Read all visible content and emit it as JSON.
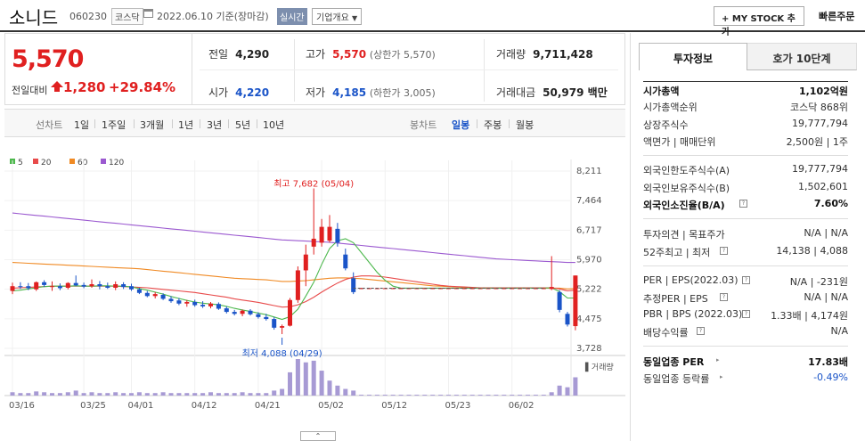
{
  "header": {
    "name": "소니드",
    "code": "060230",
    "market": "코스닥",
    "date": "2022.06.10 기준(장마감)",
    "realtime": "실시간",
    "company_info": "기업개요",
    "my_stock": "MY STOCK 추가",
    "quick_order": "빠른주문"
  },
  "price": {
    "current": "5,570",
    "change_label": "전일대비",
    "change": "1,280",
    "percent": "+29.84%"
  },
  "stats": {
    "prev_label": "전일",
    "prev": "4,290",
    "high_label": "고가",
    "high": "5,570",
    "high_note": "(상한가 5,570)",
    "volume_label": "거래량",
    "volume": "9,711,428",
    "open_label": "시가",
    "open": "4,220",
    "low_label": "저가",
    "low": "4,185",
    "low_note": "(하한가 3,005)",
    "amount_label": "거래대금",
    "amount": "50,979 백만"
  },
  "period_bar": {
    "line_label": "선차트",
    "line_periods": [
      "1일",
      "1주일",
      "3개월",
      "1년",
      "3년",
      "5년",
      "10년"
    ],
    "candle_label": "봉차트",
    "candle_periods": [
      "일봉",
      "주봉",
      "월봉"
    ],
    "active_candle": "일봉"
  },
  "chart_data": {
    "type": "candlestick",
    "legend": [
      {
        "name": "5",
        "color": "#4db84d"
      },
      {
        "name": "20",
        "color": "#e84a4a"
      },
      {
        "name": "60",
        "color": "#f08a24"
      },
      {
        "name": "120",
        "color": "#9b59d0"
      }
    ],
    "y_ticks": [
      "8,211",
      "7,464",
      "6,717",
      "5,970",
      "5,222",
      "4,475",
      "3,728"
    ],
    "ylim": [
      3728,
      8211
    ],
    "x_ticks": [
      "03/16",
      "03/25",
      "04/01",
      "04/12",
      "04/21",
      "05/02",
      "05/12",
      "05/23",
      "06/02"
    ],
    "high_annotation": "최고 7,682 (05/04)",
    "low_annotation": "최저 4,088 (04/29)",
    "volume_label": "거래량",
    "up_color": "#e02020",
    "down_color": "#1a54c8",
    "candles": [
      {
        "o": 5180,
        "h": 5390,
        "l": 5100,
        "c": 5300
      },
      {
        "o": 5300,
        "h": 5400,
        "l": 5230,
        "c": 5280
      },
      {
        "o": 5300,
        "h": 5380,
        "l": 5200,
        "c": 5250
      },
      {
        "o": 5220,
        "h": 5420,
        "l": 5180,
        "c": 5400
      },
      {
        "o": 5400,
        "h": 5450,
        "l": 5280,
        "c": 5330
      },
      {
        "o": 5280,
        "h": 5420,
        "l": 5180,
        "c": 5300
      },
      {
        "o": 5300,
        "h": 5370,
        "l": 5200,
        "c": 5250
      },
      {
        "o": 5260,
        "h": 5400,
        "l": 5220,
        "c": 5380
      },
      {
        "o": 5380,
        "h": 5570,
        "l": 5300,
        "c": 5320
      },
      {
        "o": 5330,
        "h": 5390,
        "l": 5250,
        "c": 5290
      },
      {
        "o": 5300,
        "h": 5470,
        "l": 5260,
        "c": 5350
      },
      {
        "o": 5350,
        "h": 5430,
        "l": 5220,
        "c": 5300
      },
      {
        "o": 5300,
        "h": 5390,
        "l": 5230,
        "c": 5260
      },
      {
        "o": 5260,
        "h": 5420,
        "l": 5200,
        "c": 5350
      },
      {
        "o": 5350,
        "h": 5400,
        "l": 5230,
        "c": 5280
      },
      {
        "o": 5300,
        "h": 5360,
        "l": 5180,
        "c": 5220
      },
      {
        "o": 5220,
        "h": 5260,
        "l": 5100,
        "c": 5130
      },
      {
        "o": 5130,
        "h": 5180,
        "l": 5020,
        "c": 5050
      },
      {
        "o": 5050,
        "h": 5150,
        "l": 4990,
        "c": 5100
      },
      {
        "o": 5080,
        "h": 5120,
        "l": 4950,
        "c": 4980
      },
      {
        "o": 4980,
        "h": 5050,
        "l": 4880,
        "c": 4920
      },
      {
        "o": 4940,
        "h": 5000,
        "l": 4820,
        "c": 4860
      },
      {
        "o": 4860,
        "h": 4950,
        "l": 4780,
        "c": 4900
      },
      {
        "o": 4900,
        "h": 4960,
        "l": 4780,
        "c": 4820
      },
      {
        "o": 4830,
        "h": 4920,
        "l": 4750,
        "c": 4790
      },
      {
        "o": 4790,
        "h": 4900,
        "l": 4740,
        "c": 4860
      },
      {
        "o": 4850,
        "h": 4890,
        "l": 4700,
        "c": 4730
      },
      {
        "o": 4740,
        "h": 4790,
        "l": 4610,
        "c": 4650
      },
      {
        "o": 4650,
        "h": 4700,
        "l": 4560,
        "c": 4600
      },
      {
        "o": 4600,
        "h": 4710,
        "l": 4540,
        "c": 4680
      },
      {
        "o": 4680,
        "h": 4720,
        "l": 4560,
        "c": 4590
      },
      {
        "o": 4590,
        "h": 4640,
        "l": 4480,
        "c": 4520
      },
      {
        "o": 4520,
        "h": 4600,
        "l": 4430,
        "c": 4470
      },
      {
        "o": 4470,
        "h": 4520,
        "l": 4200,
        "c": 4250
      },
      {
        "o": 4250,
        "h": 4330,
        "l": 4088,
        "c": 4290
      },
      {
        "o": 4300,
        "h": 5000,
        "l": 4280,
        "c": 4950
      },
      {
        "o": 4950,
        "h": 5800,
        "l": 4880,
        "c": 5700
      },
      {
        "o": 5700,
        "h": 6350,
        "l": 5300,
        "c": 6100
      },
      {
        "o": 6300,
        "h": 7682,
        "l": 6100,
        "c": 6500
      },
      {
        "o": 6400,
        "h": 7000,
        "l": 6300,
        "c": 6800
      },
      {
        "o": 6450,
        "h": 7100,
        "l": 6400,
        "c": 6800
      },
      {
        "o": 6750,
        "h": 6900,
        "l": 6300,
        "c": 6400
      },
      {
        "o": 6100,
        "h": 6250,
        "l": 5700,
        "c": 5750
      },
      {
        "o": 5500,
        "h": 5650,
        "l": 5100,
        "c": 5150
      },
      {
        "o": 5250,
        "h": 5260,
        "l": 5230,
        "c": 5250
      },
      {
        "o": 5250,
        "h": 5260,
        "l": 5230,
        "c": 5250
      },
      {
        "o": 5250,
        "h": 5260,
        "l": 5230,
        "c": 5250
      },
      {
        "o": 5250,
        "h": 5260,
        "l": 5230,
        "c": 5250
      },
      {
        "o": 5250,
        "h": 5260,
        "l": 5230,
        "c": 5250
      },
      {
        "o": 5250,
        "h": 5260,
        "l": 5230,
        "c": 5250
      },
      {
        "o": 5250,
        "h": 5260,
        "l": 5230,
        "c": 5250
      },
      {
        "o": 5250,
        "h": 5260,
        "l": 5230,
        "c": 5250
      },
      {
        "o": 5250,
        "h": 5260,
        "l": 5230,
        "c": 5250
      },
      {
        "o": 5250,
        "h": 5260,
        "l": 5230,
        "c": 5250
      },
      {
        "o": 5250,
        "h": 5260,
        "l": 5230,
        "c": 5250
      },
      {
        "o": 5250,
        "h": 5260,
        "l": 5230,
        "c": 5250
      },
      {
        "o": 5250,
        "h": 5260,
        "l": 5230,
        "c": 5250
      },
      {
        "o": 5250,
        "h": 5260,
        "l": 5230,
        "c": 5250
      },
      {
        "o": 5250,
        "h": 5260,
        "l": 5230,
        "c": 5250
      },
      {
        "o": 5250,
        "h": 5260,
        "l": 5230,
        "c": 5250
      },
      {
        "o": 5250,
        "h": 5260,
        "l": 5230,
        "c": 5250
      },
      {
        "o": 5250,
        "h": 5260,
        "l": 5230,
        "c": 5250
      },
      {
        "o": 5250,
        "h": 5260,
        "l": 5230,
        "c": 5250
      },
      {
        "o": 5250,
        "h": 5260,
        "l": 5230,
        "c": 5250
      },
      {
        "o": 5250,
        "h": 5260,
        "l": 5230,
        "c": 5250
      },
      {
        "o": 5250,
        "h": 5260,
        "l": 5230,
        "c": 5250
      },
      {
        "o": 5250,
        "h": 5260,
        "l": 5230,
        "c": 5250
      },
      {
        "o": 5250,
        "h": 5260,
        "l": 5230,
        "c": 5250
      },
      {
        "o": 5230,
        "h": 6060,
        "l": 5200,
        "c": 5280
      },
      {
        "o": 5150,
        "h": 5200,
        "l": 4640,
        "c": 4700
      },
      {
        "o": 4600,
        "h": 4650,
        "l": 4280,
        "c": 4330
      },
      {
        "o": 4290,
        "h": 5570,
        "l": 4185,
        "c": 5570
      }
    ],
    "volumes": [
      4,
      3,
      3,
      5,
      4,
      3,
      3,
      4,
      6,
      3,
      4,
      3,
      3,
      4,
      3,
      3,
      4,
      3,
      3,
      4,
      3,
      3,
      3,
      3,
      3,
      4,
      3,
      3,
      3,
      4,
      3,
      3,
      3,
      6,
      8,
      28,
      44,
      40,
      42,
      30,
      18,
      12,
      8,
      6,
      1,
      1,
      1,
      1,
      1,
      1,
      1,
      1,
      1,
      1,
      1,
      1,
      1,
      1,
      1,
      1,
      1,
      1,
      1,
      1,
      1,
      1,
      1,
      1,
      4,
      12,
      10,
      22
    ],
    "ma5": [
      5180,
      5200,
      5230,
      5260,
      5290,
      5300,
      5300,
      5300,
      5310,
      5300,
      5300,
      5310,
      5310,
      5300,
      5300,
      5280,
      5240,
      5200,
      5150,
      5100,
      5040,
      4990,
      4940,
      4900,
      4870,
      4850,
      4830,
      4790,
      4740,
      4700,
      4660,
      4620,
      4580,
      4520,
      4460,
      4530,
      4720,
      5050,
      5400,
      5850,
      6250,
      6450,
      6500,
      6400,
      6150,
      5900,
      5650,
      5450,
      5300,
      5250,
      5250,
      5250,
      5250,
      5250,
      5250,
      5250,
      5250,
      5250,
      5250,
      5250,
      5250,
      5250,
      5250,
      5250,
      5250,
      5250,
      5250,
      5250,
      5260,
      5160,
      5000,
      5000
    ],
    "ma20": [
      5250,
      5260,
      5270,
      5280,
      5290,
      5300,
      5300,
      5300,
      5300,
      5300,
      5300,
      5300,
      5300,
      5300,
      5290,
      5280,
      5270,
      5260,
      5240,
      5220,
      5200,
      5180,
      5160,
      5140,
      5110,
      5080,
      5050,
      5020,
      4980,
      4950,
      4920,
      4890,
      4850,
      4810,
      4770,
      4780,
      4830,
      4910,
      5020,
      5150,
      5270,
      5380,
      5470,
      5530,
      5560,
      5560,
      5550,
      5530,
      5500,
      5470,
      5440,
      5410,
      5380,
      5350,
      5320,
      5300,
      5290,
      5280,
      5270,
      5260,
      5260,
      5260,
      5260,
      5260,
      5260,
      5260,
      5260,
      5260,
      5260,
      5230,
      5180,
      5200
    ],
    "ma60": [
      5900,
      5890,
      5880,
      5870,
      5860,
      5850,
      5840,
      5830,
      5820,
      5810,
      5800,
      5790,
      5780,
      5770,
      5760,
      5750,
      5740,
      5720,
      5700,
      5680,
      5660,
      5640,
      5620,
      5600,
      5580,
      5560,
      5540,
      5520,
      5500,
      5490,
      5480,
      5470,
      5460,
      5440,
      5420,
      5420,
      5430,
      5440,
      5460,
      5480,
      5500,
      5510,
      5510,
      5500,
      5490,
      5470,
      5450,
      5430,
      5410,
      5390,
      5370,
      5350,
      5330,
      5310,
      5300,
      5290,
      5280,
      5270,
      5260,
      5260,
      5260,
      5250,
      5250,
      5250,
      5250,
      5250,
      5250,
      5250,
      5250,
      5250,
      5230,
      5240
    ],
    "ma120": [
      7150,
      7130,
      7110,
      7090,
      7070,
      7050,
      7030,
      7010,
      6990,
      6970,
      6950,
      6930,
      6910,
      6890,
      6870,
      6850,
      6830,
      6810,
      6790,
      6770,
      6750,
      6730,
      6710,
      6690,
      6670,
      6650,
      6630,
      6610,
      6590,
      6570,
      6550,
      6530,
      6510,
      6490,
      6470,
      6460,
      6450,
      6440,
      6430,
      6420,
      6410,
      6390,
      6370,
      6350,
      6330,
      6310,
      6290,
      6270,
      6250,
      6230,
      6210,
      6190,
      6170,
      6150,
      6130,
      6110,
      6090,
      6070,
      6050,
      6030,
      6010,
      5990,
      5980,
      5970,
      5960,
      5950,
      5940,
      5930,
      5920,
      5910,
      5900,
      5900
    ]
  },
  "right_panel": {
    "tabs": [
      "투자정보",
      "호가 10단계"
    ],
    "rows1": [
      {
        "k": "시가총액",
        "v": "1,102억원"
      },
      {
        "k": "시가총액순위",
        "v": "코스닥 868위"
      },
      {
        "k": "상장주식수",
        "v": "19,777,794"
      },
      {
        "k": "액면가 | 매매단위",
        "v": "2,500원 | 1주"
      }
    ],
    "rows2": [
      {
        "k": "외국인한도주식수(A)",
        "v": "19,777,794"
      },
      {
        "k": "외국인보유주식수(B)",
        "v": "1,502,601"
      },
      {
        "k": "외국인소진율(B/A)",
        "v": "7.60%"
      }
    ],
    "rows3": [
      {
        "k": "투자의견 | 목표주가",
        "v": "N/A | N/A"
      },
      {
        "k": "52주최고 | 최저",
        "v": "14,138 | 4,088"
      }
    ],
    "rows4": [
      {
        "k": "PER | EPS(2022.03)",
        "v": "N/A | -231원"
      },
      {
        "k": "추정PER | EPS",
        "v": "N/A | N/A"
      },
      {
        "k": "PBR | BPS (2022.03)",
        "v": "1.33배 | 4,174원"
      },
      {
        "k": "배당수익률",
        "v": "N/A"
      }
    ],
    "rows5": [
      {
        "k": "동일업종 PER",
        "v": "17.83배"
      },
      {
        "k": "동일업종 등락률",
        "v": "-0.49%"
      }
    ]
  },
  "bottom_toggle": "⌃"
}
